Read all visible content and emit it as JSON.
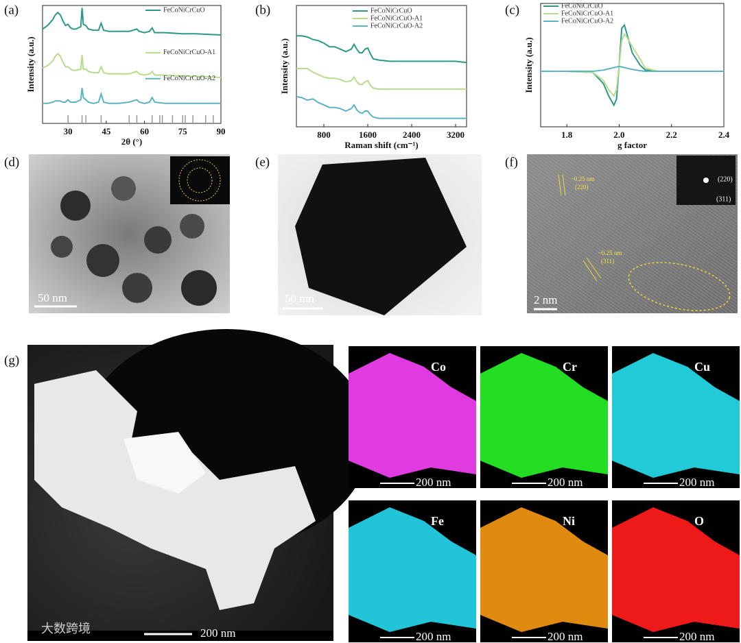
{
  "chart_data": [
    {
      "type": "line",
      "panel_label": "(a)",
      "x_label": "2θ (°)",
      "y_label": "Intensity (a.u.)",
      "legend": "inline",
      "x": [
        20,
        22,
        24,
        25,
        26,
        27,
        28,
        29,
        30,
        31,
        32,
        33,
        35,
        35.5,
        36,
        37,
        38,
        40,
        42,
        43,
        44,
        46,
        50,
        54,
        57,
        58,
        60,
        62,
        63,
        64,
        68,
        75,
        80,
        90
      ],
      "series": [
        {
          "name": "FeCoNiCrCuO",
          "color": "#2a9a86",
          "values": [
            8.0,
            8.3,
            8.8,
            9.2,
            9.4,
            9.2,
            8.7,
            8.3,
            8.4,
            8.1,
            8.0,
            8.0,
            8.2,
            9.8,
            8.4,
            8.3,
            8.0,
            7.9,
            7.9,
            8.5,
            7.9,
            7.8,
            7.8,
            7.8,
            8.0,
            7.8,
            7.7,
            7.8,
            8.1,
            7.7,
            7.7,
            7.6,
            7.6,
            7.5
          ]
        },
        {
          "name": "FeCoNiCrCuO-A1",
          "color": "#b6dd8c",
          "values": [
            4.7,
            4.9,
            5.3,
            5.7,
            5.9,
            5.7,
            5.2,
            4.8,
            4.8,
            4.6,
            4.5,
            4.5,
            4.6,
            5.8,
            4.6,
            4.6,
            4.4,
            4.3,
            4.3,
            4.8,
            4.3,
            4.2,
            4.2,
            4.2,
            4.4,
            4.2,
            4.1,
            4.2,
            4.4,
            4.1,
            4.1,
            4.0,
            4.0,
            3.9
          ]
        },
        {
          "name": "FeCoNiCrCuO-A2",
          "color": "#5ab3c2",
          "values": [
            1.7,
            1.7,
            1.8,
            1.9,
            1.9,
            1.9,
            1.8,
            1.8,
            2.0,
            1.8,
            1.8,
            1.8,
            2.0,
            3.0,
            2.2,
            2.0,
            1.8,
            1.7,
            1.8,
            2.5,
            1.8,
            1.7,
            1.7,
            1.8,
            2.0,
            1.8,
            1.7,
            1.8,
            2.2,
            1.8,
            1.7,
            1.7,
            1.7,
            1.7
          ]
        }
      ],
      "reference_peaks": [
        30,
        35.5,
        37,
        43,
        54,
        57,
        63,
        66,
        67,
        71,
        75,
        76,
        79,
        84,
        87
      ],
      "reference_color": "#999999",
      "xlim": [
        20,
        90
      ],
      "xticks": [
        30,
        45,
        60,
        75,
        90
      ],
      "ylim": [
        0,
        10
      ]
    },
    {
      "type": "line",
      "panel_label": "(b)",
      "x_label": "Raman shift (cm⁻¹)",
      "y_label": "Intensity (a.u.)",
      "legend": "upper right",
      "x": [
        300,
        400,
        500,
        600,
        700,
        800,
        900,
        1000,
        1100,
        1200,
        1300,
        1350,
        1400,
        1450,
        1500,
        1550,
        1600,
        1650,
        1700,
        1800,
        2000,
        2400,
        2800,
        3200,
        3400
      ],
      "series": [
        {
          "name": "FeCoNiCrCuO",
          "color": "#2a9a86",
          "values": [
            7.5,
            7.5,
            7.4,
            7.2,
            7.1,
            6.9,
            6.6,
            6.6,
            6.4,
            6.2,
            6.4,
            6.8,
            6.4,
            6.1,
            6.1,
            6.4,
            6.5,
            6.0,
            5.6,
            5.5,
            5.4,
            5.4,
            5.4,
            5.4,
            5.3
          ]
        },
        {
          "name": "FeCoNiCrCuO-A1",
          "color": "#b6dd8c",
          "values": [
            4.8,
            4.8,
            4.8,
            4.5,
            4.3,
            4.1,
            4.0,
            4.0,
            3.9,
            3.7,
            3.8,
            4.1,
            3.7,
            3.5,
            3.5,
            3.7,
            3.8,
            3.4,
            3.2,
            3.1,
            3.1,
            3.1,
            3.1,
            3.1,
            3.1
          ]
        },
        {
          "name": "FeCoNiCrCuO-A2",
          "color": "#5ab3c2",
          "values": [
            2.5,
            2.4,
            2.2,
            2.3,
            2.0,
            1.8,
            1.6,
            1.6,
            1.5,
            1.3,
            1.5,
            1.8,
            1.4,
            1.2,
            1.1,
            1.3,
            1.3,
            1.0,
            0.8,
            0.7,
            0.7,
            0.7,
            0.7,
            0.7,
            0.7
          ]
        }
      ],
      "xlim": [
        300,
        3400
      ],
      "xticks": [
        800,
        1600,
        2400,
        3200
      ],
      "ylim": [
        0,
        10
      ]
    },
    {
      "type": "line",
      "panel_label": "(c)",
      "x_label": "g factor",
      "y_label": "Intensity (a.u.)",
      "legend": "upper left",
      "x": [
        1.7,
        1.8,
        1.9,
        1.94,
        1.96,
        1.98,
        1.99,
        2.0,
        2.01,
        2.02,
        2.03,
        2.05,
        2.08,
        2.1,
        2.15,
        2.2,
        2.3,
        2.4
      ],
      "series": [
        {
          "name": "FeCoNiCrCuO",
          "color": "#2a9a86",
          "values": [
            -0.1,
            -0.1,
            -0.12,
            -0.3,
            -0.5,
            -0.65,
            -0.55,
            0.0,
            0.6,
            0.65,
            0.5,
            0.2,
            0.0,
            -0.08,
            -0.1,
            -0.1,
            -0.1,
            -0.1
          ]
        },
        {
          "name": "FeCoNiCrCuO-A1",
          "color": "#b6dd8c",
          "values": [
            -0.1,
            -0.1,
            -0.12,
            -0.25,
            -0.4,
            -0.5,
            -0.4,
            0.0,
            0.4,
            0.5,
            0.45,
            0.3,
            0.1,
            -0.05,
            -0.1,
            -0.1,
            -0.1,
            -0.1
          ]
        },
        {
          "name": "FeCoNiCrCuO-A2",
          "color": "#5ab3c2",
          "values": [
            -0.1,
            -0.1,
            -0.1,
            -0.08,
            -0.06,
            -0.04,
            -0.03,
            -0.02,
            -0.03,
            -0.04,
            -0.05,
            -0.07,
            -0.09,
            -0.1,
            -0.1,
            -0.1,
            -0.1,
            -0.1
          ]
        }
      ],
      "xlim": [
        1.7,
        2.4
      ],
      "xticks": [
        1.8,
        {
          "value": 2,
          "label": "2.0"
        },
        2.2,
        2.4
      ],
      "ylim": [
        -1,
        1
      ]
    }
  ],
  "images": {
    "d": {
      "panel_label": "(d)",
      "scale_bar": "50 nm"
    },
    "e": {
      "panel_label": "(e)",
      "scale_bar": "50 nm"
    },
    "f": {
      "panel_label": "(f)",
      "scale_bar": "2 nm",
      "fringe_1": [
        "~0.25 nm",
        "(220)"
      ],
      "fringe_2": [
        "~0.25 nm",
        "(311)"
      ],
      "inset": [
        "(220)",
        "(311)"
      ]
    },
    "g": {
      "panel_label": "(g)",
      "scale_bar": "200 nm",
      "maps": [
        {
          "element": "Co",
          "scale_bar": "200 nm",
          "color": "#e03be0"
        },
        {
          "element": "Cr",
          "scale_bar": "200 nm",
          "color": "#22dd22"
        },
        {
          "element": "Cu",
          "scale_bar": "200 nm",
          "color": "#22c9d6"
        },
        {
          "element": "Fe",
          "scale_bar": "200 nm",
          "color": "#22c4da"
        },
        {
          "element": "Ni",
          "scale_bar": "200 nm",
          "color": "#e08a10"
        },
        {
          "element": "O",
          "scale_bar": "200 nm",
          "color": "#ee1a1a"
        }
      ]
    }
  },
  "watermark": "大数跨境"
}
